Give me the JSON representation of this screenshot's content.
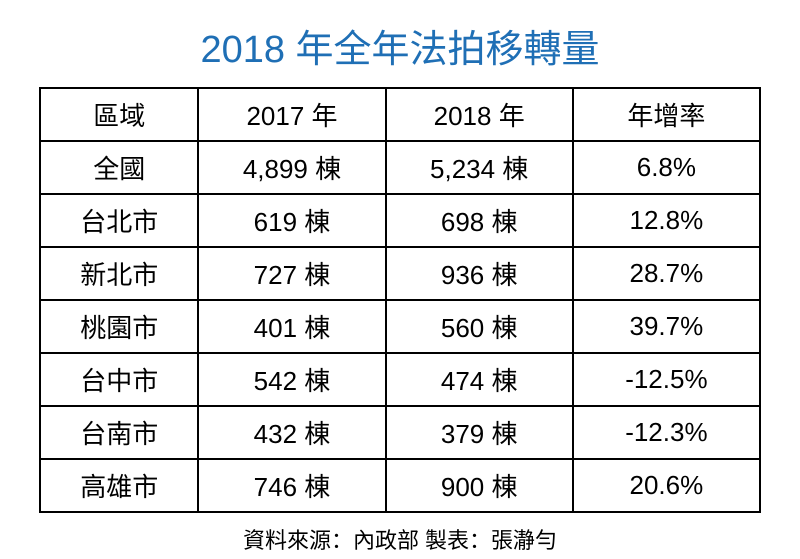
{
  "title": "2018 年全年法拍移轉量",
  "title_color": "#1f6fb5",
  "columns": [
    "區域",
    "2017 年",
    "2018 年",
    "年增率"
  ],
  "rows": [
    [
      "全國",
      "4,899 棟",
      "5,234 棟",
      "6.8%"
    ],
    [
      "台北市",
      "619 棟",
      "698 棟",
      "12.8%"
    ],
    [
      "新北市",
      "727 棟",
      "936 棟",
      "28.7%"
    ],
    [
      "桃園市",
      "401 棟",
      "560 棟",
      "39.7%"
    ],
    [
      "台中市",
      "542 棟",
      "474 棟",
      "-12.5%"
    ],
    [
      "台南市",
      "432 棟",
      "379 棟",
      "-12.3%"
    ],
    [
      "高雄市",
      "746 棟",
      "900 棟",
      "20.6%"
    ]
  ],
  "footer": "資料來源：內政部 製表：張瀞勻"
}
